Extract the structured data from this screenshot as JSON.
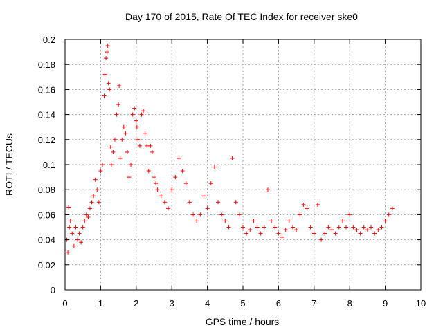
{
  "chart_data": {
    "type": "scatter",
    "title": "Day 170 of 2015, Rate Of TEC Index for receiver ske0",
    "xlabel": "GPS time / hours",
    "ylabel": "ROTI / TECUs",
    "xlim": [
      0,
      10
    ],
    "ylim": [
      0,
      0.2
    ],
    "x_ticks": [
      "0",
      "1",
      "2",
      "3",
      "4",
      "5",
      "6",
      "7",
      "8",
      "9",
      "10"
    ],
    "y_ticks": [
      "0",
      "0.02",
      "0.04",
      "0.06",
      "0.08",
      "0.1",
      "0.12",
      "0.14",
      "0.16",
      "0.18",
      "0.2"
    ],
    "grid": true,
    "marker": "+",
    "color": "#ff0000",
    "series": [
      {
        "name": "ROTI",
        "x": [
          0.05,
          0.08,
          0.1,
          0.12,
          0.15,
          0.2,
          0.25,
          0.3,
          0.35,
          0.4,
          0.45,
          0.5,
          0.55,
          0.6,
          0.65,
          0.7,
          0.75,
          0.8,
          0.85,
          0.9,
          0.95,
          1.0,
          1.05,
          1.1,
          1.12,
          1.15,
          1.18,
          1.2,
          1.22,
          1.25,
          1.28,
          1.3,
          1.35,
          1.4,
          1.45,
          1.5,
          1.52,
          1.55,
          1.6,
          1.65,
          1.7,
          1.75,
          1.8,
          1.85,
          1.9,
          1.95,
          2.0,
          2.02,
          2.05,
          2.1,
          2.15,
          2.2,
          2.25,
          2.3,
          2.35,
          2.4,
          2.45,
          2.5,
          2.55,
          2.6,
          2.7,
          2.8,
          2.9,
          3.0,
          3.1,
          3.2,
          3.3,
          3.4,
          3.5,
          3.6,
          3.7,
          3.8,
          3.9,
          4.0,
          4.1,
          4.2,
          4.3,
          4.4,
          4.5,
          4.6,
          4.7,
          4.8,
          4.9,
          5.0,
          5.1,
          5.2,
          5.3,
          5.4,
          5.5,
          5.6,
          5.7,
          5.8,
          5.9,
          6.0,
          6.1,
          6.2,
          6.3,
          6.4,
          6.5,
          6.6,
          6.7,
          6.8,
          6.9,
          7.0,
          7.1,
          7.2,
          7.3,
          7.4,
          7.5,
          7.6,
          7.7,
          7.8,
          7.9,
          8.0,
          8.1,
          8.2,
          8.3,
          8.4,
          8.5,
          8.6,
          8.7,
          8.8,
          8.9,
          9.0,
          9.1,
          9.2
        ],
        "y": [
          0.04,
          0.03,
          0.066,
          0.05,
          0.055,
          0.045,
          0.035,
          0.05,
          0.04,
          0.045,
          0.038,
          0.05,
          0.055,
          0.06,
          0.058,
          0.065,
          0.07,
          0.075,
          0.088,
          0.08,
          0.07,
          0.095,
          0.1,
          0.155,
          0.172,
          0.185,
          0.19,
          0.195,
          0.165,
          0.16,
          0.114,
          0.1,
          0.11,
          0.12,
          0.14,
          0.148,
          0.163,
          0.105,
          0.12,
          0.13,
          0.125,
          0.11,
          0.09,
          0.1,
          0.14,
          0.145,
          0.135,
          0.13,
          0.12,
          0.115,
          0.14,
          0.143,
          0.125,
          0.115,
          0.095,
          0.115,
          0.11,
          0.09,
          0.085,
          0.08,
          0.075,
          0.07,
          0.065,
          0.08,
          0.09,
          0.105,
          0.095,
          0.085,
          0.07,
          0.06,
          0.055,
          0.06,
          0.075,
          0.065,
          0.085,
          0.098,
          0.07,
          0.06,
          0.055,
          0.05,
          0.105,
          0.07,
          0.06,
          0.05,
          0.045,
          0.048,
          0.055,
          0.05,
          0.045,
          0.05,
          0.08,
          0.055,
          0.05,
          0.045,
          0.042,
          0.048,
          0.055,
          0.05,
          0.048,
          0.06,
          0.068,
          0.065,
          0.05,
          0.045,
          0.068,
          0.04,
          0.045,
          0.05,
          0.048,
          0.045,
          0.05,
          0.055,
          0.05,
          0.06,
          0.05,
          0.048,
          0.045,
          0.05,
          0.048,
          0.05,
          0.045,
          0.048,
          0.05,
          0.055,
          0.06,
          0.065
        ]
      }
    ]
  }
}
